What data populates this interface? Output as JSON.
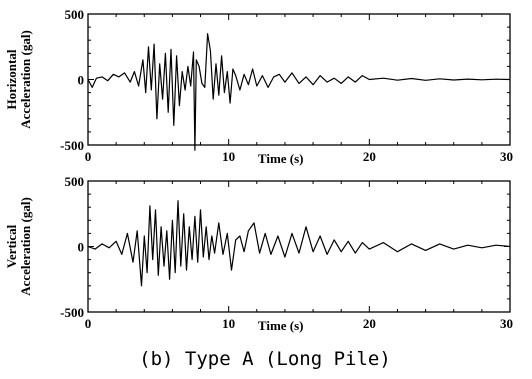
{
  "caption": "(b) Type A (Long Pile)",
  "chart_data": [
    {
      "type": "line",
      "title": "",
      "xlabel": "Time (s)",
      "ylabel_line1": "Horizontal",
      "ylabel_line2": "Acceleration (gal)",
      "xlim": [
        0,
        30
      ],
      "ylim": [
        -500,
        500
      ],
      "xticks": [
        0,
        10,
        20,
        30
      ],
      "yticks": [
        500,
        0,
        -500
      ],
      "ytick_labels": [
        "500",
        "0",
        "-500"
      ],
      "xtick_labels": [
        "0",
        "10",
        "20",
        "30"
      ],
      "grid": false,
      "series": [
        {
          "x": [
            0,
            0.3,
            0.6,
            1.0,
            1.4,
            1.8,
            2.2,
            2.6,
            3.0,
            3.3,
            3.6,
            3.9,
            4.1,
            4.3,
            4.5,
            4.7,
            4.9,
            5.1,
            5.3,
            5.5,
            5.7,
            5.9,
            6.1,
            6.3,
            6.5,
            6.7,
            6.9,
            7.1,
            7.3,
            7.5,
            7.6,
            7.7,
            7.9,
            8.1,
            8.3,
            8.5,
            8.7,
            8.9,
            9.1,
            9.3,
            9.5,
            9.7,
            9.9,
            10.1,
            10.3,
            10.5,
            10.8,
            11.1,
            11.4,
            11.7,
            12.0,
            12.4,
            12.8,
            13.2,
            13.6,
            14.0,
            14.5,
            15.0,
            15.5,
            16.0,
            16.5,
            17.0,
            17.5,
            18.0,
            18.5,
            19.0,
            19.5,
            20.0,
            21.0,
            22.0,
            23.0,
            24.0,
            25.0,
            26.0,
            27.0,
            28.0,
            29.0,
            30.0
          ],
          "y": [
            0,
            -60,
            10,
            20,
            -10,
            40,
            20,
            50,
            -20,
            60,
            -50,
            150,
            -100,
            250,
            -80,
            270,
            -300,
            120,
            -150,
            200,
            -250,
            230,
            -350,
            180,
            -200,
            60,
            -80,
            100,
            -50,
            210,
            -540,
            150,
            100,
            -30,
            -60,
            350,
            220,
            -150,
            120,
            -120,
            180,
            -100,
            60,
            -180,
            80,
            30,
            -80,
            40,
            -40,
            80,
            -50,
            30,
            -60,
            20,
            40,
            -20,
            50,
            -30,
            20,
            -40,
            30,
            -20,
            10,
            -30,
            20,
            -20,
            30,
            0,
            10,
            -5,
            8,
            -6,
            5,
            -4,
            3,
            -2,
            2,
            0
          ]
        }
      ]
    },
    {
      "type": "line",
      "title": "",
      "xlabel": "Time (s)",
      "ylabel_line1": "Vertical",
      "ylabel_line2": "Acceleration (gal)",
      "xlim": [
        0,
        30
      ],
      "ylim": [
        -500,
        500
      ],
      "xticks": [
        0,
        10,
        20,
        30
      ],
      "yticks": [
        500,
        0,
        -500
      ],
      "ytick_labels": [
        "500",
        "0",
        "-500"
      ],
      "xtick_labels": [
        "0",
        "10",
        "20",
        "30"
      ],
      "grid": false,
      "series": [
        {
          "x": [
            0,
            0.5,
            1.0,
            1.5,
            2.0,
            2.4,
            2.8,
            3.2,
            3.5,
            3.8,
            4.0,
            4.2,
            4.4,
            4.6,
            4.8,
            5.0,
            5.2,
            5.4,
            5.6,
            5.8,
            6.0,
            6.2,
            6.4,
            6.6,
            6.8,
            7.0,
            7.2,
            7.4,
            7.6,
            7.8,
            8.0,
            8.2,
            8.4,
            8.6,
            8.8,
            9.0,
            9.3,
            9.6,
            9.9,
            10.2,
            10.5,
            10.8,
            11.1,
            11.4,
            11.8,
            12.2,
            12.6,
            13.0,
            13.5,
            14.0,
            14.5,
            15.0,
            15.5,
            16.0,
            16.5,
            17.0,
            17.5,
            18.0,
            18.5,
            19.0,
            19.5,
            20.0,
            21.0,
            22.0,
            23.0,
            24.0,
            25.0,
            26.0,
            27.0,
            28.0,
            29.0,
            30.0
          ],
          "y": [
            0,
            -20,
            20,
            -10,
            40,
            -60,
            100,
            -120,
            120,
            -300,
            80,
            -200,
            310,
            -100,
            280,
            -220,
            150,
            -150,
            120,
            -250,
            200,
            -200,
            350,
            -150,
            250,
            -180,
            150,
            -100,
            230,
            -120,
            280,
            -80,
            150,
            -100,
            80,
            -50,
            180,
            -60,
            100,
            -180,
            50,
            80,
            -40,
            120,
            180,
            -50,
            100,
            -60,
            80,
            -80,
            100,
            -50,
            150,
            -40,
            80,
            -60,
            50,
            -40,
            40,
            -50,
            30,
            -20,
            30,
            -40,
            20,
            -30,
            20,
            -20,
            10,
            -10,
            10,
            0
          ]
        }
      ]
    }
  ]
}
